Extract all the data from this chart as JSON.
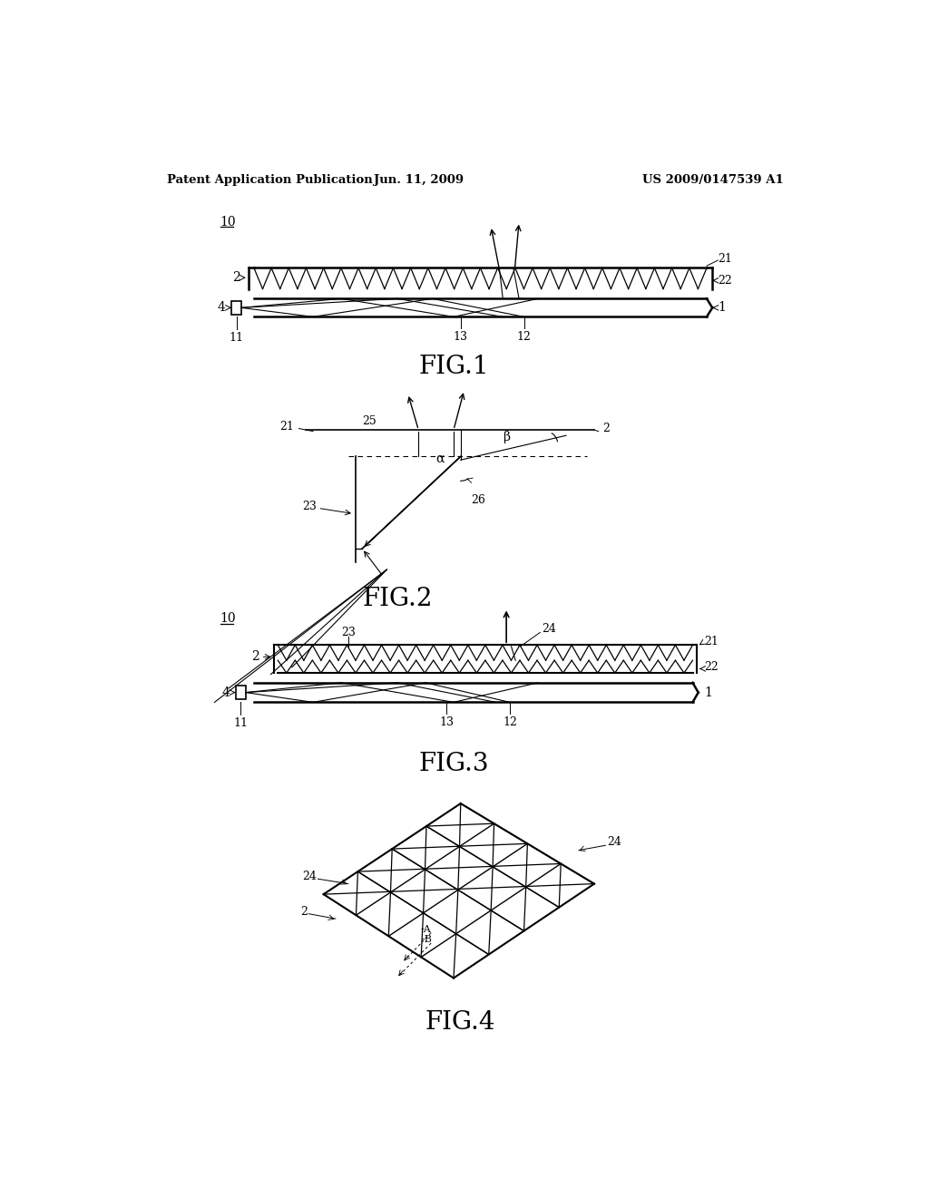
{
  "bg_color": "#ffffff",
  "header_left": "Patent Application Publication",
  "header_center": "Jun. 11, 2009",
  "header_right": "US 2009/0147539 A1"
}
